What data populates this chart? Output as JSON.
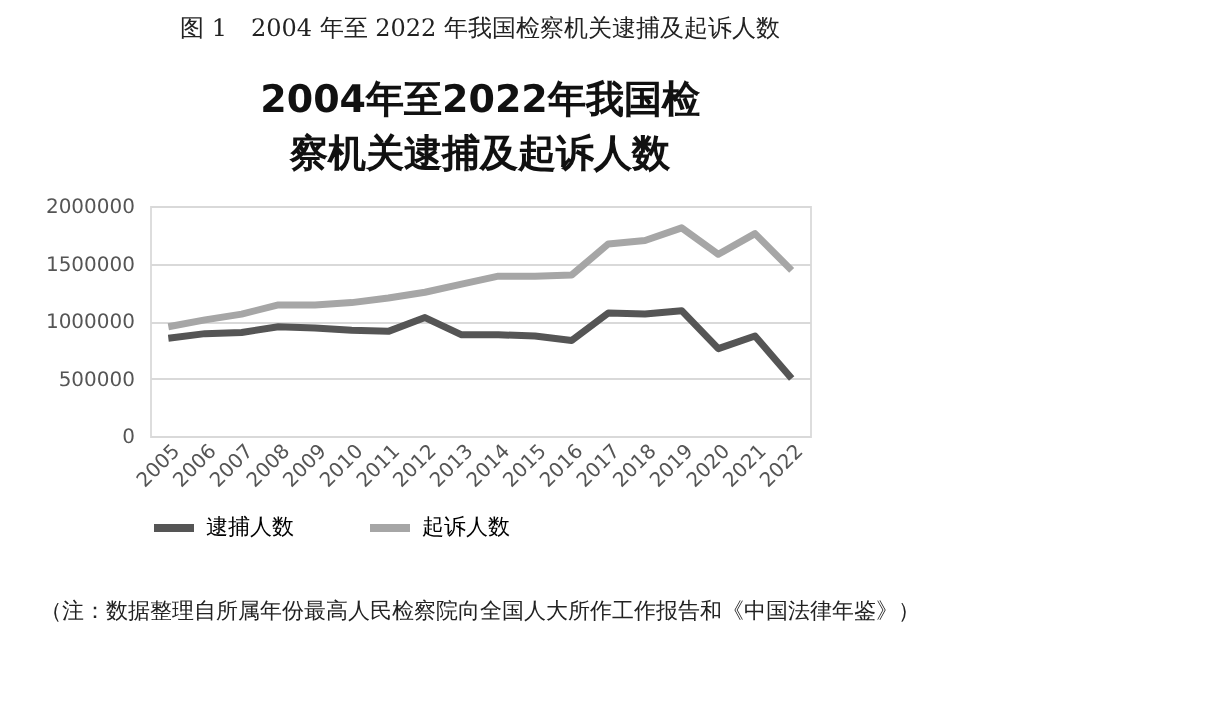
{
  "chart_data": {
    "type": "line",
    "title": "图 1　2004 年至 2022 年我国检察机关逮捕及起诉人数",
    "subtitle": "2004年至2022年我国检察机关逮捕及起诉人数",
    "categories": [
      "2005",
      "2006",
      "2007",
      "2008",
      "2009",
      "2010",
      "2011",
      "2012",
      "2013",
      "2014",
      "2015",
      "2016",
      "2017",
      "2018",
      "2019",
      "2020",
      "2021",
      "2022"
    ],
    "series": [
      {
        "name": "逮捕人数",
        "color": "#555555",
        "values": [
          850000,
          890000,
          900000,
          950000,
          940000,
          920000,
          910000,
          1030000,
          880000,
          880000,
          870000,
          830000,
          1070000,
          1060000,
          1090000,
          760000,
          870000,
          500000
        ]
      },
      {
        "name": "起诉人数",
        "color": "#a6a6a6",
        "values": [
          950000,
          1010000,
          1060000,
          1140000,
          1140000,
          1160000,
          1200000,
          1250000,
          1320000,
          1390000,
          1390000,
          1400000,
          1670000,
          1700000,
          1810000,
          1580000,
          1760000,
          1440000
        ]
      }
    ],
    "ylim": [
      0,
      2000000
    ],
    "yticks": [
      0,
      500000,
      1000000,
      1500000,
      2000000
    ],
    "grid": "y",
    "legend": "bottom",
    "annotations": [
      "（注：数据整理自所属年份最高人民检察院向全国人大所作工作报告和《中国法律年鉴》）"
    ]
  }
}
